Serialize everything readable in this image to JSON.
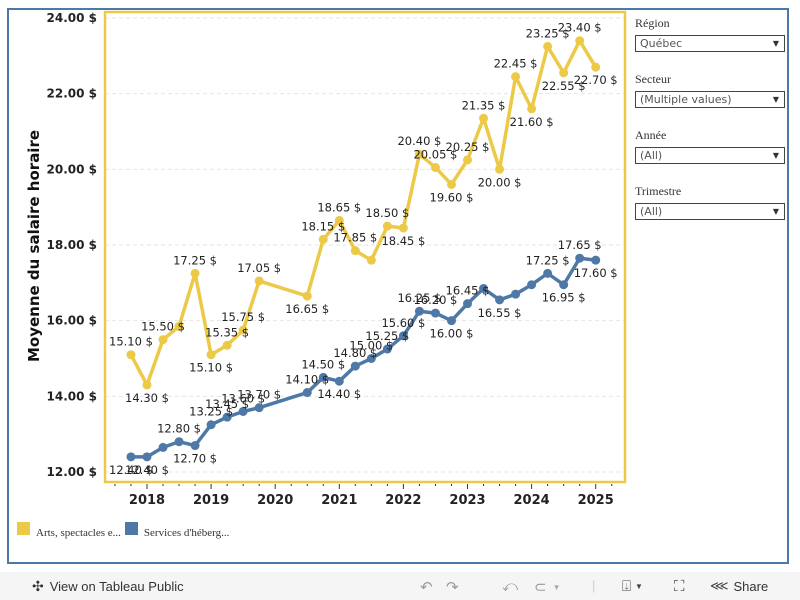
{
  "chart_data": {
    "type": "line",
    "title": "",
    "xlabel": "",
    "ylabel": "Moyenne du salaire horaire",
    "ylim": [
      12,
      24
    ],
    "yticks": [
      "12.00 $",
      "14.00 $",
      "16.00 $",
      "18.00 $",
      "20.00 $",
      "22.00 $",
      "24.00 $"
    ],
    "ytick_values": [
      12,
      14,
      16,
      18,
      20,
      22,
      24
    ],
    "xticks": [
      "2018",
      "2019",
      "2020",
      "2021",
      "2022",
      "2023",
      "2024",
      "2025"
    ],
    "xtick_values": [
      2018.0,
      2019.0,
      2020.0,
      2021.0,
      2022.0,
      2023.0,
      2024.0,
      2025.0
    ],
    "xlim": [
      2017.6,
      2025.45
    ],
    "grid": "horizontal-dashed",
    "legend_position": "bottom-left",
    "series": [
      {
        "name": "Arts, spectacles e...",
        "color": "#edc948",
        "x": [
          2017.75,
          2018.0,
          2018.25,
          2018.5,
          2018.75,
          2019.0,
          2019.25,
          2019.5,
          2019.75,
          2020.5,
          2020.75,
          2021.0,
          2021.25,
          2021.5,
          2021.75,
          2022.0,
          2022.25,
          2022.5,
          2022.75,
          2023.0,
          2023.25,
          2023.5,
          2023.75,
          2024.0,
          2024.25,
          2024.5,
          2024.75,
          2025.0
        ],
        "values": [
          15.1,
          14.3,
          15.5,
          15.85,
          17.25,
          15.1,
          15.35,
          15.75,
          17.05,
          16.65,
          18.15,
          18.65,
          17.85,
          17.6,
          18.5,
          18.45,
          20.4,
          20.05,
          19.6,
          20.25,
          21.35,
          20.0,
          22.45,
          21.6,
          23.25,
          22.55,
          23.4,
          22.7
        ],
        "labels": [
          "15.10 $",
          "14.30 $",
          "15.50 $",
          "",
          "17.25 $",
          "15.10 $",
          "15.35 $",
          "15.75 $",
          "17.05 $",
          "16.65 $",
          "18.15 $",
          "18.65 $",
          "17.85 $",
          "",
          "18.50 $",
          "18.45 $",
          "20.40 $",
          "20.05 $",
          "19.60 $",
          "20.25 $",
          "21.35 $",
          "20.00 $",
          "22.45 $",
          "21.60 $",
          "23.25 $",
          "22.55 $",
          "23.40 $",
          "22.70 $"
        ]
      },
      {
        "name": "Services d'héberg...",
        "color": "#4e79a7",
        "x": [
          2017.75,
          2018.0,
          2018.25,
          2018.5,
          2018.75,
          2019.0,
          2019.25,
          2019.5,
          2019.75,
          2020.5,
          2020.75,
          2021.0,
          2021.25,
          2021.5,
          2021.75,
          2022.0,
          2022.25,
          2022.5,
          2022.75,
          2023.0,
          2023.25,
          2023.5,
          2023.75,
          2024.0,
          2024.25,
          2024.5,
          2024.75,
          2025.0
        ],
        "values": [
          12.4,
          12.4,
          12.65,
          12.8,
          12.7,
          13.25,
          13.45,
          13.6,
          13.7,
          14.1,
          14.5,
          14.4,
          14.8,
          15.0,
          15.25,
          15.6,
          16.25,
          16.2,
          16.0,
          16.45,
          16.85,
          16.55,
          16.7,
          16.95,
          17.25,
          16.95,
          17.65,
          17.6
        ],
        "labels": [
          "12.40 $",
          "12.40 $",
          "",
          "12.80 $",
          "12.70 $",
          "13.25 $",
          "13.45 $",
          "13.60 $",
          "13.70 $",
          "14.10 $",
          "14.50 $",
          "14.40 $",
          "14.80 $",
          "15.00 $",
          "15.25 $",
          "15.60 $",
          "16.25 $",
          "16.20 $",
          "16.00 $",
          "16.45 $",
          "",
          "16.55 $",
          "",
          "",
          "17.25 $",
          "16.95 $",
          "17.65 $",
          "17.60 $"
        ]
      }
    ]
  },
  "filters": [
    {
      "title": "Région",
      "value": "Québec"
    },
    {
      "title": "Secteur",
      "value": "(Multiple values)"
    },
    {
      "title": "Année",
      "value": "(All)"
    },
    {
      "title": "Trimestre",
      "value": "(All)"
    }
  ],
  "legend": [
    {
      "label": "Arts, spectacles e...",
      "color": "#edc948"
    },
    {
      "label": "Services d'héberg...",
      "color": "#4e79a7"
    }
  ],
  "toolbar": {
    "view_on_public": "View on Tableau Public",
    "share": "Share",
    "icons": [
      "tableau-logo-icon",
      "undo-icon",
      "redo-icon",
      "revert-icon",
      "refresh-icon",
      "download-icon",
      "fullscreen-icon",
      "share-icon"
    ]
  },
  "colors": {
    "frame": "#4e79a7",
    "plot_border": "#edc948"
  }
}
